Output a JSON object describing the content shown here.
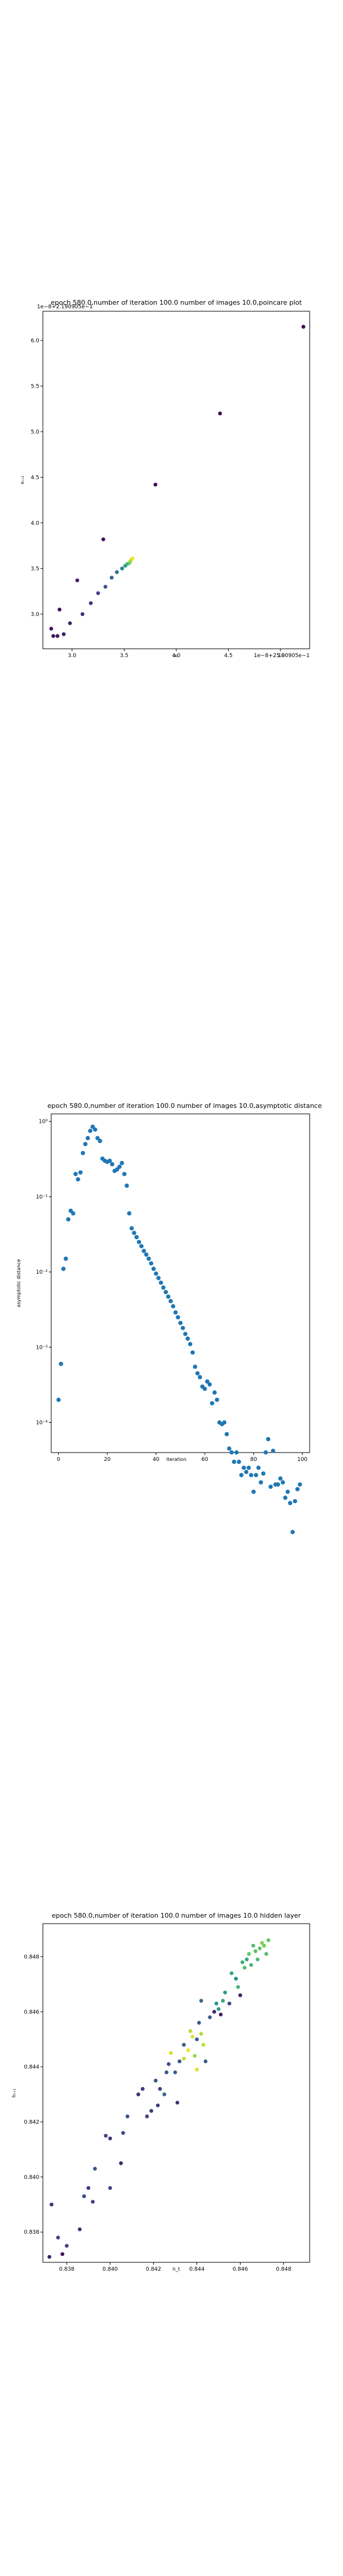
{
  "chart_data": [
    {
      "type": "scatter",
      "title": "epoch 580.0,number of iteration 100.0 number of images 10.0,poincare plot",
      "xlabel": "xₜ",
      "ylabel": "xₜ₊₁",
      "corner_label": "1e−8+2.190905e−1",
      "axis_offset_text": "1e−8+2.190905e−1",
      "x_ticks": [
        "3.0",
        "3.5",
        "4.0",
        "4.5",
        "5.0"
      ],
      "y_ticks": [
        "3.0",
        "3.5",
        "4.0",
        "4.5",
        "5.0",
        "5.5",
        "6.0"
      ],
      "xlim": [
        2.72,
        5.28
      ],
      "ylim": [
        2.62,
        6.32
      ],
      "colormap": "viridis",
      "points": [
        {
          "x": 2.8,
          "y": 2.84,
          "c": 0.05
        },
        {
          "x": 2.82,
          "y": 2.76,
          "c": 0.05
        },
        {
          "x": 2.86,
          "y": 2.76,
          "c": 0.06
        },
        {
          "x": 2.88,
          "y": 3.05,
          "c": 0.02
        },
        {
          "x": 2.92,
          "y": 2.78,
          "c": 0.07
        },
        {
          "x": 2.98,
          "y": 2.9,
          "c": 0.1
        },
        {
          "x": 3.05,
          "y": 3.37,
          "c": 0.08
        },
        {
          "x": 3.1,
          "y": 3.0,
          "c": 0.12
        },
        {
          "x": 3.18,
          "y": 3.12,
          "c": 0.15
        },
        {
          "x": 3.25,
          "y": 3.23,
          "c": 0.2
        },
        {
          "x": 3.3,
          "y": 3.82,
          "c": 0.04
        },
        {
          "x": 3.32,
          "y": 3.3,
          "c": 0.25
        },
        {
          "x": 3.38,
          "y": 3.4,
          "c": 0.3
        },
        {
          "x": 3.43,
          "y": 3.46,
          "c": 0.35
        },
        {
          "x": 3.48,
          "y": 3.5,
          "c": 0.45
        },
        {
          "x": 3.51,
          "y": 3.53,
          "c": 0.55
        },
        {
          "x": 3.53,
          "y": 3.55,
          "c": 0.65
        },
        {
          "x": 3.55,
          "y": 3.56,
          "c": 0.75
        },
        {
          "x": 3.56,
          "y": 3.58,
          "c": 0.85
        },
        {
          "x": 3.57,
          "y": 3.6,
          "c": 0.92
        },
        {
          "x": 3.58,
          "y": 3.61,
          "c": 0.98
        },
        {
          "x": 3.8,
          "y": 4.42,
          "c": 0.01
        },
        {
          "x": 4.42,
          "y": 5.2,
          "c": 0.0
        },
        {
          "x": 5.22,
          "y": 6.15,
          "c": 0.0
        }
      ]
    },
    {
      "type": "scatter",
      "title": "epoch 580.0,number of iteration 100.0  number of images 10.0,asymptotic distance",
      "xlabel": "iteration",
      "ylabel": "asymptotic distance",
      "y_scale": "log",
      "xlim": [
        -3,
        103
      ],
      "ylim_exp": [
        -4.4,
        0.1
      ],
      "x_ticks": [
        "0",
        "20",
        "40",
        "60",
        "80",
        "100"
      ],
      "y_ticks": [
        "10⁰",
        "10⁻¹",
        "10⁻²",
        "10⁻³",
        "10⁻⁴"
      ],
      "color": "#1f77b4",
      "points": [
        {
          "x": 0,
          "y": 0.0002
        },
        {
          "x": 1,
          "y": 0.0006
        },
        {
          "x": 2,
          "y": 0.011
        },
        {
          "x": 3,
          "y": 0.015
        },
        {
          "x": 4,
          "y": 0.05
        },
        {
          "x": 5,
          "y": 0.065
        },
        {
          "x": 6,
          "y": 0.06
        },
        {
          "x": 7,
          "y": 0.2
        },
        {
          "x": 8,
          "y": 0.17
        },
        {
          "x": 9,
          "y": 0.21
        },
        {
          "x": 10,
          "y": 0.38
        },
        {
          "x": 11,
          "y": 0.5
        },
        {
          "x": 12,
          "y": 0.6
        },
        {
          "x": 13,
          "y": 0.75
        },
        {
          "x": 14,
          "y": 0.85
        },
        {
          "x": 15,
          "y": 0.78
        },
        {
          "x": 16,
          "y": 0.6
        },
        {
          "x": 17,
          "y": 0.55
        },
        {
          "x": 18,
          "y": 0.32
        },
        {
          "x": 19,
          "y": 0.3
        },
        {
          "x": 20,
          "y": 0.29
        },
        {
          "x": 21,
          "y": 0.3
        },
        {
          "x": 22,
          "y": 0.27
        },
        {
          "x": 23,
          "y": 0.22
        },
        {
          "x": 24,
          "y": 0.23
        },
        {
          "x": 25,
          "y": 0.25
        },
        {
          "x": 26,
          "y": 0.28
        },
        {
          "x": 27,
          "y": 0.2
        },
        {
          "x": 28,
          "y": 0.14
        },
        {
          "x": 29,
          "y": 0.06
        },
        {
          "x": 30,
          "y": 0.038
        },
        {
          "x": 31,
          "y": 0.033
        },
        {
          "x": 32,
          "y": 0.029
        },
        {
          "x": 33,
          "y": 0.025
        },
        {
          "x": 34,
          "y": 0.022
        },
        {
          "x": 35,
          "y": 0.019
        },
        {
          "x": 36,
          "y": 0.017
        },
        {
          "x": 37,
          "y": 0.015
        },
        {
          "x": 38,
          "y": 0.013
        },
        {
          "x": 39,
          "y": 0.011
        },
        {
          "x": 40,
          "y": 0.0095
        },
        {
          "x": 41,
          "y": 0.0083
        },
        {
          "x": 42,
          "y": 0.0072
        },
        {
          "x": 43,
          "y": 0.0062
        },
        {
          "x": 44,
          "y": 0.0054
        },
        {
          "x": 45,
          "y": 0.0047
        },
        {
          "x": 46,
          "y": 0.0041
        },
        {
          "x": 47,
          "y": 0.0035
        },
        {
          "x": 48,
          "y": 0.0029
        },
        {
          "x": 49,
          "y": 0.0025
        },
        {
          "x": 50,
          "y": 0.0021
        },
        {
          "x": 51,
          "y": 0.0018
        },
        {
          "x": 52,
          "y": 0.0015
        },
        {
          "x": 53,
          "y": 0.0013
        },
        {
          "x": 54,
          "y": 0.0011
        },
        {
          "x": 55,
          "y": 0.00085
        },
        {
          "x": 56,
          "y": 0.00055
        },
        {
          "x": 57,
          "y": 0.00045
        },
        {
          "x": 58,
          "y": 0.0004
        },
        {
          "x": 59,
          "y": 0.0003
        },
        {
          "x": 60,
          "y": 0.00028
        },
        {
          "x": 61,
          "y": 0.00035
        },
        {
          "x": 62,
          "y": 0.00032
        },
        {
          "x": 63,
          "y": 0.00018
        },
        {
          "x": 64,
          "y": 0.00025
        },
        {
          "x": 65,
          "y": 0.0002
        },
        {
          "x": 66,
          "y": 0.0001
        },
        {
          "x": 67,
          "y": 9.5e-05
        },
        {
          "x": 68,
          "y": 0.0001
        },
        {
          "x": 69,
          "y": 7e-05
        },
        {
          "x": 70,
          "y": 4.5e-05
        },
        {
          "x": 71,
          "y": 4e-05
        },
        {
          "x": 72,
          "y": 3e-05
        },
        {
          "x": 73,
          "y": 4e-05
        },
        {
          "x": 74,
          "y": 3e-05
        },
        {
          "x": 75,
          "y": 2e-05
        },
        {
          "x": 76,
          "y": 2.5e-05
        },
        {
          "x": 77,
          "y": 2.2e-05
        },
        {
          "x": 78,
          "y": 2.5e-05
        },
        {
          "x": 79,
          "y": 2e-05
        },
        {
          "x": 80,
          "y": 1.2e-05
        },
        {
          "x": 81,
          "y": 2e-05
        },
        {
          "x": 82,
          "y": 2.5e-05
        },
        {
          "x": 83,
          "y": 1.6e-05
        },
        {
          "x": 84,
          "y": 2.1e-05
        },
        {
          "x": 85,
          "y": 4e-05
        },
        {
          "x": 86,
          "y": 6e-05
        },
        {
          "x": 87,
          "y": 1.4e-05
        },
        {
          "x": 88,
          "y": 4.2e-05
        },
        {
          "x": 89,
          "y": 1.5e-05
        },
        {
          "x": 90,
          "y": 1.5e-05
        },
        {
          "x": 91,
          "y": 1.8e-05
        },
        {
          "x": 92,
          "y": 1.6e-05
        },
        {
          "x": 93,
          "y": 1e-05
        },
        {
          "x": 94,
          "y": 1.2e-05
        },
        {
          "x": 95,
          "y": 8.5e-06
        },
        {
          "x": 96,
          "y": 3.5e-06
        },
        {
          "x": 97,
          "y": 9e-06
        },
        {
          "x": 98,
          "y": 1.3e-05
        },
        {
          "x": 99,
          "y": 1.5e-05
        }
      ]
    },
    {
      "type": "scatter",
      "title": "epoch 580.0,number of iteration 100.0  number of images 10.0 hidden layer",
      "xlabel": "h_t",
      "ylabel": "hₜ₊₁",
      "xlim": [
        0.8369,
        0.8492
      ],
      "ylim": [
        0.8369,
        0.8492
      ],
      "x_ticks": [
        "0.838",
        "0.840",
        "0.842",
        "0.844",
        "0.846",
        "0.848"
      ],
      "y_ticks": [
        "0.838",
        "0.840",
        "0.842",
        "0.844",
        "0.846",
        "0.848"
      ],
      "colormap": "viridis",
      "points": [
        {
          "x": 0.8372,
          "y": 0.8371,
          "c": 0.1
        },
        {
          "x": 0.8373,
          "y": 0.839,
          "c": 0.15
        },
        {
          "x": 0.8376,
          "y": 0.8378,
          "c": 0.2
        },
        {
          "x": 0.8378,
          "y": 0.8372,
          "c": 0.05
        },
        {
          "x": 0.838,
          "y": 0.8375,
          "c": 0.2
        },
        {
          "x": 0.8386,
          "y": 0.8381,
          "c": 0.15
        },
        {
          "x": 0.8388,
          "y": 0.8393,
          "c": 0.22
        },
        {
          "x": 0.839,
          "y": 0.8396,
          "c": 0.18
        },
        {
          "x": 0.8392,
          "y": 0.8391,
          "c": 0.2
        },
        {
          "x": 0.8393,
          "y": 0.8403,
          "c": 0.25
        },
        {
          "x": 0.8398,
          "y": 0.8415,
          "c": 0.22
        },
        {
          "x": 0.84,
          "y": 0.8396,
          "c": 0.2
        },
        {
          "x": 0.84,
          "y": 0.8414,
          "c": 0.18
        },
        {
          "x": 0.8405,
          "y": 0.8405,
          "c": 0.12
        },
        {
          "x": 0.8406,
          "y": 0.8416,
          "c": 0.22
        },
        {
          "x": 0.8408,
          "y": 0.8422,
          "c": 0.25
        },
        {
          "x": 0.8413,
          "y": 0.843,
          "c": 0.15
        },
        {
          "x": 0.8415,
          "y": 0.8432,
          "c": 0.18
        },
        {
          "x": 0.8417,
          "y": 0.8422,
          "c": 0.2
        },
        {
          "x": 0.8419,
          "y": 0.8424,
          "c": 0.18
        },
        {
          "x": 0.8421,
          "y": 0.8435,
          "c": 0.25
        },
        {
          "x": 0.8422,
          "y": 0.8426,
          "c": 0.2
        },
        {
          "x": 0.8423,
          "y": 0.8432,
          "c": 0.22
        },
        {
          "x": 0.8425,
          "y": 0.843,
          "c": 0.35
        },
        {
          "x": 0.8426,
          "y": 0.8438,
          "c": 0.28
        },
        {
          "x": 0.8427,
          "y": 0.8441,
          "c": 0.25
        },
        {
          "x": 0.8428,
          "y": 0.8445,
          "c": 0.95
        },
        {
          "x": 0.843,
          "y": 0.8438,
          "c": 0.3
        },
        {
          "x": 0.8431,
          "y": 0.8427,
          "c": 0.15
        },
        {
          "x": 0.8432,
          "y": 0.8442,
          "c": 0.25
        },
        {
          "x": 0.8434,
          "y": 0.8448,
          "c": 0.3
        },
        {
          "x": 0.8434,
          "y": 0.8443,
          "c": 0.92
        },
        {
          "x": 0.8436,
          "y": 0.8446,
          "c": 0.98
        },
        {
          "x": 0.8437,
          "y": 0.8453,
          "c": 0.9
        },
        {
          "x": 0.8438,
          "y": 0.8451,
          "c": 0.95
        },
        {
          "x": 0.8439,
          "y": 0.8444,
          "c": 0.85
        },
        {
          "x": 0.844,
          "y": 0.8439,
          "c": 0.95
        },
        {
          "x": 0.844,
          "y": 0.845,
          "c": 0.3
        },
        {
          "x": 0.8441,
          "y": 0.8456,
          "c": 0.28
        },
        {
          "x": 0.8442,
          "y": 0.8464,
          "c": 0.35
        },
        {
          "x": 0.8442,
          "y": 0.8452,
          "c": 0.88
        },
        {
          "x": 0.8443,
          "y": 0.8448,
          "c": 0.9
        },
        {
          "x": 0.8444,
          "y": 0.8442,
          "c": 0.3
        },
        {
          "x": 0.8446,
          "y": 0.8458,
          "c": 0.3
        },
        {
          "x": 0.8448,
          "y": 0.846,
          "c": 0.1
        },
        {
          "x": 0.8449,
          "y": 0.8463,
          "c": 0.5
        },
        {
          "x": 0.845,
          "y": 0.8461,
          "c": 0.55
        },
        {
          "x": 0.8451,
          "y": 0.8459,
          "c": 0.08
        },
        {
          "x": 0.8452,
          "y": 0.8464,
          "c": 0.6
        },
        {
          "x": 0.8453,
          "y": 0.8467,
          "c": 0.55
        },
        {
          "x": 0.8455,
          "y": 0.8463,
          "c": 0.2
        },
        {
          "x": 0.8456,
          "y": 0.8474,
          "c": 0.6
        },
        {
          "x": 0.8458,
          "y": 0.8472,
          "c": 0.5
        },
        {
          "x": 0.8459,
          "y": 0.8469,
          "c": 0.65
        },
        {
          "x": 0.846,
          "y": 0.8466,
          "c": 0.1
        },
        {
          "x": 0.8461,
          "y": 0.8478,
          "c": 0.62
        },
        {
          "x": 0.8462,
          "y": 0.8476,
          "c": 0.7
        },
        {
          "x": 0.8463,
          "y": 0.8479,
          "c": 0.6
        },
        {
          "x": 0.8464,
          "y": 0.8481,
          "c": 0.75
        },
        {
          "x": 0.8465,
          "y": 0.8477,
          "c": 0.65
        },
        {
          "x": 0.8466,
          "y": 0.8484,
          "c": 0.7
        },
        {
          "x": 0.8467,
          "y": 0.8482,
          "c": 0.72
        },
        {
          "x": 0.8468,
          "y": 0.8479,
          "c": 0.68
        },
        {
          "x": 0.8469,
          "y": 0.8483,
          "c": 0.75
        },
        {
          "x": 0.847,
          "y": 0.8485,
          "c": 0.8
        },
        {
          "x": 0.8471,
          "y": 0.8484,
          "c": 0.78
        },
        {
          "x": 0.8472,
          "y": 0.8481,
          "c": 0.7
        },
        {
          "x": 0.8473,
          "y": 0.8486,
          "c": 0.75
        }
      ]
    }
  ]
}
